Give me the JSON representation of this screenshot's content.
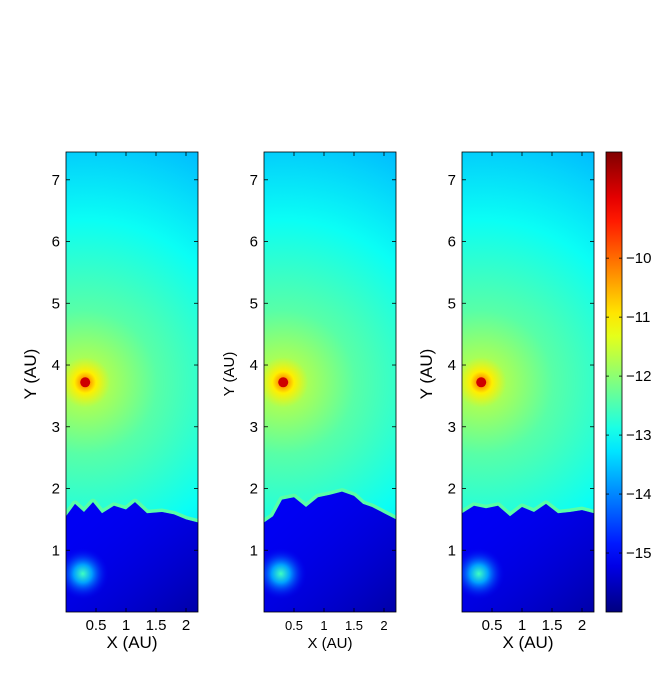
{
  "chart_data": {
    "type": "heatmap",
    "panels": [
      {
        "xlabel": "X (AU)",
        "ylabel": "Y (AU)",
        "xlim": [
          0,
          2.2
        ],
        "ylim": [
          0,
          7.45
        ],
        "xticks": [
          0.5,
          1,
          1.5,
          2
        ],
        "yticks": [
          1,
          2,
          3,
          4,
          5,
          6,
          7
        ],
        "xtick_labels": [
          "0.5",
          "1",
          "1.5",
          "2"
        ],
        "ytick_labels": [
          "1",
          "2",
          "3",
          "4",
          "5",
          "6",
          "7"
        ],
        "hot_spot": {
          "x": 0.32,
          "y": 3.72,
          "value": -10.1
        },
        "cool_spot": {
          "x": 0.28,
          "y": 0.62,
          "value": -13.6
        },
        "front_y": 1.65,
        "front_profile": [
          [
            0,
            1.55
          ],
          [
            0.15,
            1.75
          ],
          [
            0.3,
            1.62
          ],
          [
            0.45,
            1.78
          ],
          [
            0.6,
            1.6
          ],
          [
            0.8,
            1.72
          ],
          [
            1.0,
            1.66
          ],
          [
            1.15,
            1.78
          ],
          [
            1.35,
            1.6
          ],
          [
            1.6,
            1.62
          ],
          [
            1.8,
            1.58
          ],
          [
            2.0,
            1.5
          ],
          [
            2.2,
            1.45
          ]
        ]
      },
      {
        "xlabel": "X (AU)",
        "ylabel": "Y (AU)",
        "xlim": [
          0,
          2.2
        ],
        "ylim": [
          0,
          7.45
        ],
        "xticks": [
          0.5,
          1,
          1.5,
          2
        ],
        "yticks": [
          1,
          2,
          3,
          4,
          5,
          6,
          7
        ],
        "xtick_labels": [
          "0.5",
          "1",
          "1.5",
          "2"
        ],
        "ytick_labels": [
          "1",
          "2",
          "3",
          "4",
          "5",
          "6",
          "7"
        ],
        "hot_spot": {
          "x": 0.32,
          "y": 3.72,
          "value": -10.1
        },
        "cool_spot": {
          "x": 0.28,
          "y": 0.62,
          "value": -13.6
        },
        "front_y": 1.8,
        "front_profile": [
          [
            0,
            1.45
          ],
          [
            0.15,
            1.55
          ],
          [
            0.3,
            1.82
          ],
          [
            0.5,
            1.86
          ],
          [
            0.7,
            1.7
          ],
          [
            0.9,
            1.86
          ],
          [
            1.1,
            1.9
          ],
          [
            1.3,
            1.95
          ],
          [
            1.5,
            1.88
          ],
          [
            1.65,
            1.75
          ],
          [
            1.8,
            1.7
          ],
          [
            2.0,
            1.6
          ],
          [
            2.2,
            1.5
          ]
        ]
      },
      {
        "xlabel": "X (AU)",
        "ylabel": "Y (AU)",
        "xlim": [
          0,
          2.2
        ],
        "ylim": [
          0,
          7.45
        ],
        "xticks": [
          0.5,
          1,
          1.5,
          2
        ],
        "yticks": [
          1,
          2,
          3,
          4,
          5,
          6,
          7
        ],
        "xtick_labels": [
          "0.5",
          "1",
          "1.5",
          "2"
        ],
        "ytick_labels": [
          "1",
          "2",
          "3",
          "4",
          "5",
          "6",
          "7"
        ],
        "hot_spot": {
          "x": 0.32,
          "y": 3.72,
          "value": -10.1
        },
        "cool_spot": {
          "x": 0.28,
          "y": 0.62,
          "value": -13.6
        },
        "front_y": 1.65,
        "front_profile": [
          [
            0,
            1.6
          ],
          [
            0.2,
            1.72
          ],
          [
            0.4,
            1.68
          ],
          [
            0.6,
            1.72
          ],
          [
            0.8,
            1.55
          ],
          [
            1.0,
            1.7
          ],
          [
            1.2,
            1.62
          ],
          [
            1.4,
            1.75
          ],
          [
            1.6,
            1.6
          ],
          [
            1.8,
            1.62
          ],
          [
            2.0,
            1.65
          ],
          [
            2.2,
            1.6
          ]
        ]
      }
    ],
    "colorbar": {
      "range": [
        -16,
        -8.2
      ],
      "ticks": [
        -10,
        -11,
        -12,
        -13,
        -14,
        -15
      ],
      "tick_labels": [
        "−10",
        "−11",
        "−12",
        "−13",
        "−14",
        "−15"
      ],
      "colormap": "jet"
    },
    "colors": {
      "jet_low": "#00008f",
      "jet_mid": "#80ff80",
      "jet_high": "#800000",
      "background_region": "#1e3cff",
      "frame": "#000000"
    }
  }
}
